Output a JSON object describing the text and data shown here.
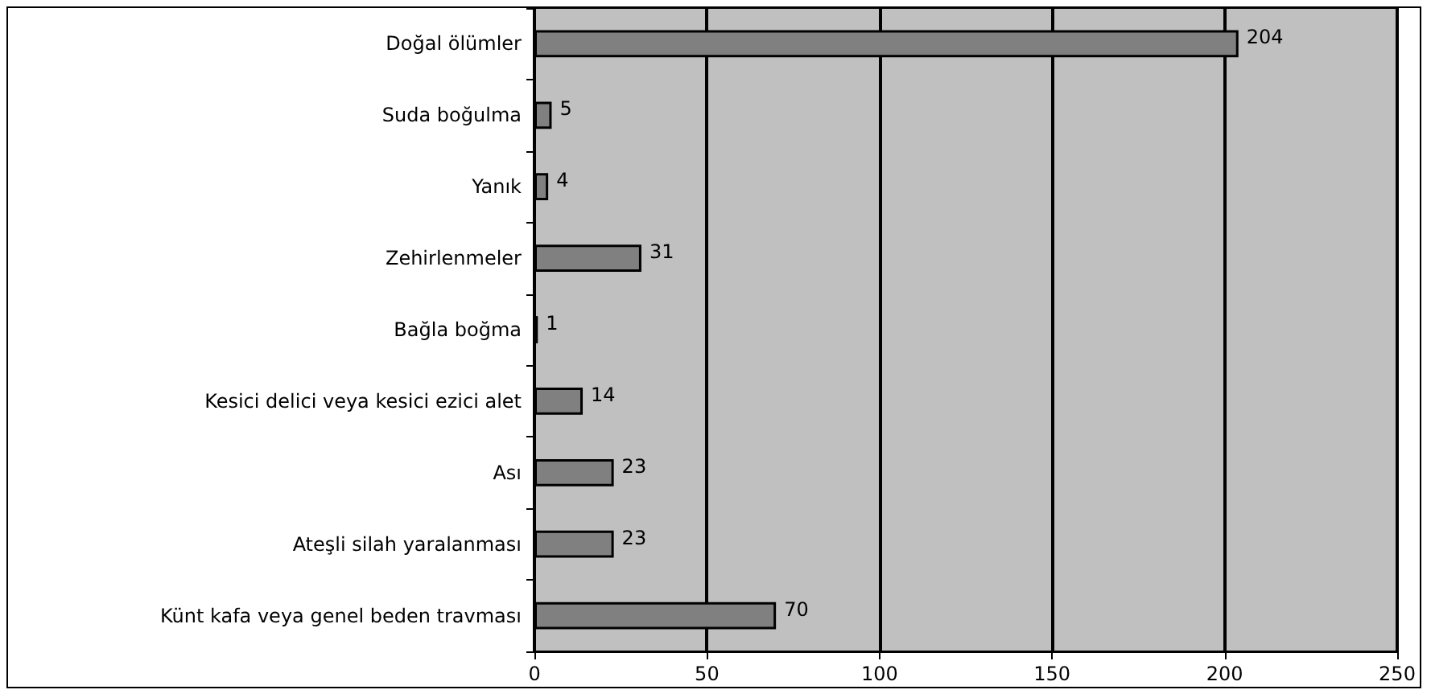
{
  "chart_data": {
    "type": "bar",
    "orientation": "horizontal",
    "categories": [
      "Doğal ölümler",
      "Suda boğulma",
      "Yanık",
      "Zehirlenmeler",
      "Bağla boğma",
      "Kesici delici veya kesici ezici alet",
      "Ası",
      "Ateşli silah yaralanması",
      "Künt kafa veya genel beden travması"
    ],
    "values": [
      204,
      5,
      4,
      31,
      1,
      14,
      23,
      23,
      70
    ],
    "color": "#808080",
    "xlim": [
      0,
      250
    ],
    "xticks": [
      0,
      50,
      100,
      150,
      200,
      250
    ],
    "grid": "x",
    "data_labels": true
  }
}
